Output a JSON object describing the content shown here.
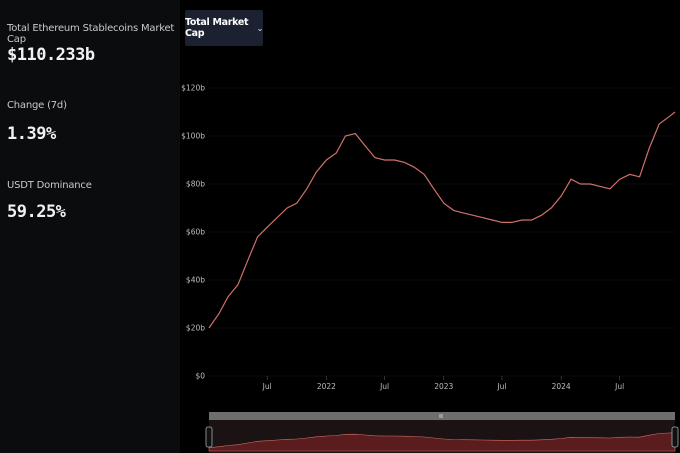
{
  "sidebar": {
    "stats": [
      {
        "label": "Total Ethereum Stablecoins Market Cap",
        "value": "$110.233b"
      },
      {
        "label": "Change (7d)",
        "value": "1.39%"
      },
      {
        "label": "USDT Dominance",
        "value": "59.25%"
      }
    ]
  },
  "metric_selector": {
    "label": "Total Market Cap",
    "icon": "chevron-down-icon"
  },
  "brush": {
    "handle_icon": "drag-handle-icon"
  },
  "colors": {
    "line": "#d0706a",
    "area": "#5a1c1c"
  },
  "chart_data": {
    "type": "line",
    "y_ticks": [
      "$0",
      "$20b",
      "$40b",
      "$60b",
      "$80b",
      "$100b",
      "$120b"
    ],
    "y_tick_values": [
      0,
      20,
      40,
      60,
      80,
      100,
      120
    ],
    "x_ticks": [
      {
        "label": "Jul",
        "x": "2021-07-01"
      },
      {
        "label": "2022",
        "x": "2022-01-01"
      },
      {
        "label": "Jul",
        "x": "2022-07-01"
      },
      {
        "label": "2023",
        "x": "2023-01-01"
      },
      {
        "label": "Jul",
        "x": "2023-07-01"
      },
      {
        "label": "2024",
        "x": "2024-01-01"
      },
      {
        "label": "Jul",
        "x": "2024-07-01"
      }
    ],
    "xlim": [
      "2021-01-01",
      "2024-12-20"
    ],
    "ylim": [
      0,
      120
    ],
    "series": [
      {
        "x": [
          "2021-01-01",
          "2021-02-01",
          "2021-03-01",
          "2021-04-01",
          "2021-05-01",
          "2021-06-01",
          "2021-07-01",
          "2021-08-01",
          "2021-09-01",
          "2021-10-01",
          "2021-11-01",
          "2021-12-01",
          "2022-01-01",
          "2022-02-01",
          "2022-03-01",
          "2022-04-01",
          "2022-05-01",
          "2022-06-01",
          "2022-07-01",
          "2022-08-01",
          "2022-09-01",
          "2022-10-01",
          "2022-11-01",
          "2022-12-01",
          "2023-01-01",
          "2023-02-01",
          "2023-03-01",
          "2023-04-01",
          "2023-05-01",
          "2023-06-01",
          "2023-07-01",
          "2023-08-01",
          "2023-09-01",
          "2023-10-01",
          "2023-11-01",
          "2023-12-01",
          "2024-01-01",
          "2024-02-01",
          "2024-03-01",
          "2024-04-01",
          "2024-05-01",
          "2024-06-01",
          "2024-07-01",
          "2024-08-01",
          "2024-09-01",
          "2024-10-01",
          "2024-11-01",
          "2024-12-01",
          "2024-12-20"
        ],
        "values": [
          20,
          26,
          33,
          38,
          48,
          58,
          62,
          66,
          70,
          72,
          78,
          85,
          90,
          93,
          100,
          101,
          96,
          91,
          90,
          90,
          89,
          87,
          84,
          78,
          72,
          69,
          68,
          67,
          66,
          65,
          64,
          64,
          65,
          65,
          67,
          70,
          75,
          82,
          80,
          80,
          79,
          78,
          82,
          84,
          83,
          95,
          105,
          108,
          110
        ]
      }
    ]
  }
}
